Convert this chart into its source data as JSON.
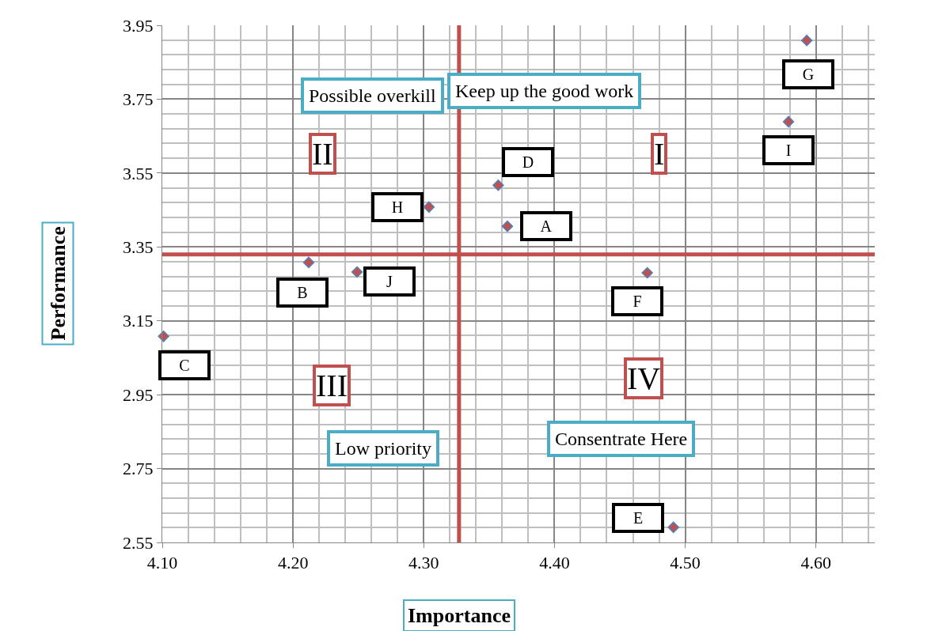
{
  "chart_data": {
    "type": "scatter",
    "xlabel": "Importance",
    "ylabel": "Performance",
    "x": [
      4.364,
      4.212,
      4.101,
      4.357,
      4.491,
      4.471,
      4.593,
      4.304,
      4.579,
      4.249
    ],
    "series": [
      {
        "color": "#c0504d",
        "values": [
          3.406,
          3.308,
          3.108,
          3.517,
          2.591,
          3.28,
          3.909,
          3.458,
          3.689,
          3.282
        ]
      }
    ],
    "annotations": [
      {
        "text": "A",
        "x": 4.364,
        "y": 3.406
      },
      {
        "text": "B",
        "x": 4.212,
        "y": 3.308
      },
      {
        "text": "C",
        "x": 4.101,
        "y": 3.108
      },
      {
        "text": "D",
        "x": 4.357,
        "y": 3.517
      },
      {
        "text": "E",
        "x": 4.491,
        "y": 2.591
      },
      {
        "text": "F",
        "x": 4.471,
        "y": 3.28
      },
      {
        "text": "G",
        "x": 4.593,
        "y": 3.909
      },
      {
        "text": "H",
        "x": 4.304,
        "y": 3.458
      },
      {
        "text": "I",
        "x": 4.579,
        "y": 3.689
      },
      {
        "text": "J",
        "x": 4.249,
        "y": 3.282
      },
      "Possible overkill",
      "Keep up the good work",
      "II",
      "I",
      "III",
      "IV",
      "Low priority",
      "Consentrate Here"
    ],
    "ref_lines": [
      {
        "axis": "x",
        "value": 4.327,
        "color": "#c0504d"
      },
      {
        "axis": "y",
        "value": 3.33,
        "color": "#c0504d"
      }
    ],
    "xlim": [
      4.1,
      4.645
    ],
    "xticks": [
      {
        "value": 4.1,
        "label": "4.10"
      },
      {
        "value": 4.2,
        "label": "4.20"
      },
      {
        "value": 4.3,
        "label": "4.30"
      },
      {
        "value": 4.4,
        "label": "4.40"
      },
      {
        "value": 4.5,
        "label": "4.50"
      },
      {
        "value": 4.6,
        "label": "4.60"
      }
    ],
    "ylim": [
      2.55,
      3.95
    ],
    "yticks": [
      2.55,
      2.75,
      2.95,
      3.15,
      3.35,
      3.55,
      3.75,
      3.95
    ],
    "grid": true,
    "legend": false,
    "marker": "diamond"
  }
}
